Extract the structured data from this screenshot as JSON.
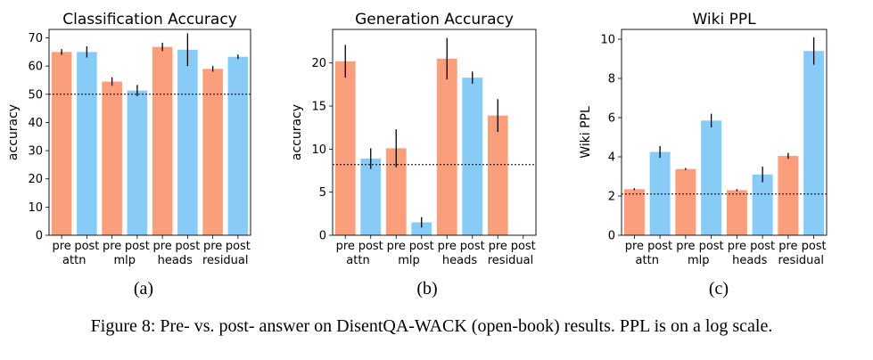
{
  "figure": {
    "caption": "Figure 8: Pre- vs. post- answer on DisentQA-WACK (open-book) results. PPL is on a log scale.",
    "subcaptions": [
      "(a)",
      "(b)",
      "(c)"
    ]
  },
  "colors": {
    "pre": "#fa9e7c",
    "post": "#89cbf7",
    "error_bar": "#000000",
    "baseline": "#000000"
  },
  "chart_data": [
    {
      "type": "bar",
      "title": "Classification Accuracy",
      "xlabel": "",
      "ylabel": "accuracy",
      "ylim": [
        0,
        73
      ],
      "yticks": [
        0,
        10,
        20,
        30,
        40,
        50,
        60,
        70
      ],
      "groups": [
        "attn",
        "mlp",
        "heads",
        "residual"
      ],
      "bar_labels": [
        "pre",
        "post"
      ],
      "series": [
        {
          "values": [
            65.0,
            54.5,
            66.8,
            59.0
          ],
          "errors": [
            1.0,
            1.5,
            1.5,
            1.0
          ]
        },
        {
          "values": [
            65.0,
            51.3,
            65.8,
            63.3
          ],
          "errors": [
            2.0,
            2.0,
            5.8,
            0.8
          ]
        }
      ],
      "baseline": 50.0
    },
    {
      "type": "bar",
      "title": "Generation Accuracy",
      "xlabel": "",
      "ylabel": "accuracy",
      "ylim": [
        0,
        23.9
      ],
      "yticks": [
        0,
        5,
        10,
        15,
        20
      ],
      "groups": [
        "attn",
        "mlp",
        "heads",
        "residual"
      ],
      "bar_labels": [
        "pre",
        "post"
      ],
      "series": [
        {
          "values": [
            20.2,
            10.1,
            20.5,
            13.9
          ],
          "errors": [
            1.9,
            2.2,
            2.4,
            1.9
          ]
        },
        {
          "values": [
            8.9,
            1.5,
            18.3,
            0
          ],
          "errors": [
            1.2,
            0.6,
            0.7,
            0
          ]
        }
      ],
      "baseline": 8.2
    },
    {
      "type": "bar",
      "title": "Wiki PPL",
      "xlabel": "",
      "ylabel": "Wiki PPL",
      "ylim": [
        0,
        10.5
      ],
      "yticks": [
        0,
        2,
        4,
        6,
        8,
        10
      ],
      "groups": [
        "attn",
        "mlp",
        "heads",
        "residual"
      ],
      "bar_labels": [
        "pre",
        "post"
      ],
      "series": [
        {
          "values": [
            2.35,
            3.38,
            2.3,
            4.05
          ],
          "errors": [
            0.05,
            0.05,
            0.05,
            0.15
          ]
        },
        {
          "values": [
            4.25,
            5.85,
            3.1,
            9.4
          ],
          "errors": [
            0.3,
            0.35,
            0.4,
            0.7
          ]
        }
      ],
      "baseline": 2.1
    }
  ]
}
